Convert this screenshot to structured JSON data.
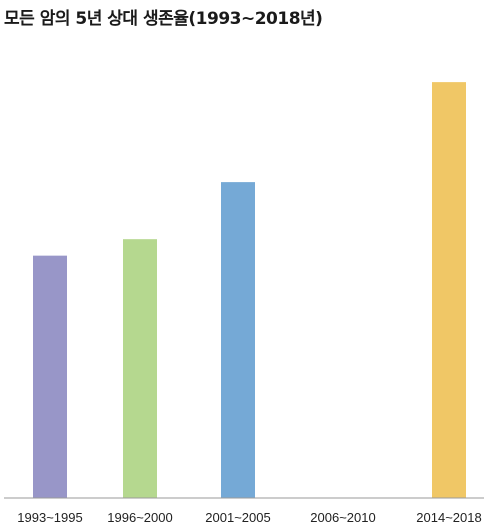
{
  "chart_data": {
    "type": "bar",
    "title": "모든 암의 5년 상대 생존율(1993~2018년)",
    "xlabel": "",
    "ylabel": "",
    "categories": [
      "1993~1995",
      "1996~2000",
      "2001~2005",
      "2006~2010",
      "2014~2018"
    ],
    "series": [
      {
        "values": [
          41.2,
          44.0,
          53.7,
          null,
          70.7
        ]
      }
    ],
    "ylim": [
      0,
      85
    ],
    "grid": false,
    "colors": [
      "#9896c8",
      "#b5d88f",
      "#75a9d6",
      "#ffffff",
      "#f0c766"
    ]
  }
}
